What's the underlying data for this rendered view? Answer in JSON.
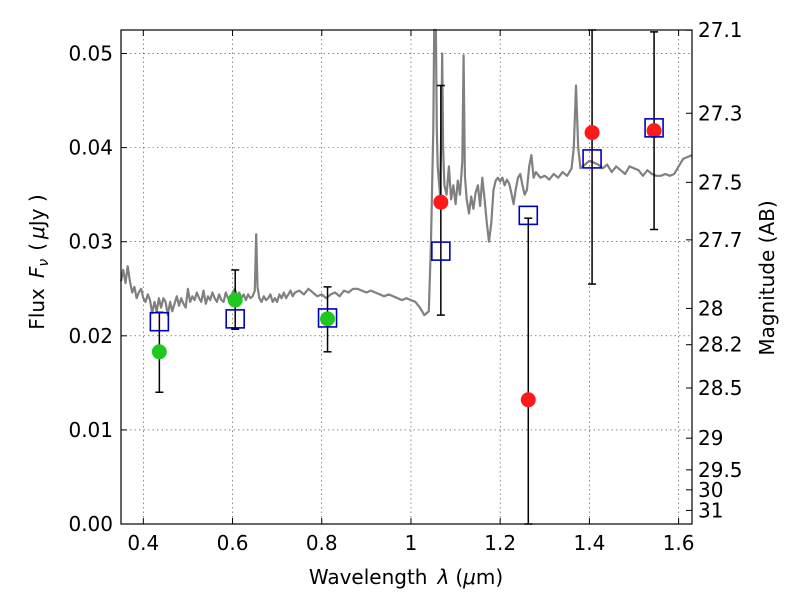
{
  "chart_data": {
    "type": "scatter",
    "title": "",
    "xlabel": "Wavelength",
    "xlabel_symbol": "λ",
    "xlabel_unit_open": "(",
    "xlabel_unit_mu": "μ",
    "xlabel_unit_rest": "m)",
    "ylabel": "Flux",
    "ylabel_symbol": "F",
    "ylabel_subscript": "ν",
    "ylabel_unit_open": "(",
    "ylabel_unit_mu": "μ",
    "ylabel_unit_rest": "Jy )",
    "y2label": "Magnitude (AB)",
    "xlim": [
      0.35,
      1.63
    ],
    "ylim": [
      0.0,
      0.0525
    ],
    "grid": true,
    "x_ticks": [
      {
        "value": 0.4,
        "label": "0.4"
      },
      {
        "value": 0.6,
        "label": "0.6"
      },
      {
        "value": 0.8,
        "label": "0.8"
      },
      {
        "value": 1.0,
        "label": "1"
      },
      {
        "value": 1.2,
        "label": "1.2"
      },
      {
        "value": 1.4,
        "label": "1.4"
      },
      {
        "value": 1.6,
        "label": "1.6"
      }
    ],
    "y_ticks": [
      {
        "value": 0.0,
        "label": "0.00"
      },
      {
        "value": 0.01,
        "label": "0.01"
      },
      {
        "value": 0.02,
        "label": "0.02"
      },
      {
        "value": 0.03,
        "label": "0.03"
      },
      {
        "value": 0.04,
        "label": "0.04"
      },
      {
        "value": 0.05,
        "label": "0.05"
      }
    ],
    "y2_ticks": [
      {
        "value": 27.1,
        "label": "27.1"
      },
      {
        "value": 27.3,
        "label": "27.3"
      },
      {
        "value": 27.5,
        "label": "27.5"
      },
      {
        "value": 27.7,
        "label": "27.7"
      },
      {
        "value": 28.0,
        "label": "28"
      },
      {
        "value": 28.2,
        "label": "28.2"
      },
      {
        "value": 28.5,
        "label": "28.5"
      },
      {
        "value": 29.0,
        "label": "29"
      },
      {
        "value": 29.5,
        "label": "29.5"
      },
      {
        "value": 30.0,
        "label": "30"
      },
      {
        "value": 31.0,
        "label": "31"
      }
    ],
    "colors": {
      "spectrum": "#808080",
      "observed_detected": "#1ec81e",
      "observed_other": "#ff1a1a",
      "model": "#0000bb",
      "errorbar": "#000000"
    },
    "series": [
      {
        "kind": "line",
        "points": [
          [
            0.35,
            0.0258
          ],
          [
            0.355,
            0.027
          ],
          [
            0.36,
            0.0256
          ],
          [
            0.365,
            0.0274
          ],
          [
            0.37,
            0.0258
          ],
          [
            0.375,
            0.0246
          ],
          [
            0.38,
            0.0252
          ],
          [
            0.385,
            0.024
          ],
          [
            0.39,
            0.0246
          ],
          [
            0.395,
            0.025
          ],
          [
            0.4,
            0.024
          ],
          [
            0.405,
            0.0236
          ],
          [
            0.41,
            0.0244
          ],
          [
            0.415,
            0.0238
          ],
          [
            0.42,
            0.0224
          ],
          [
            0.425,
            0.0236
          ],
          [
            0.43,
            0.0226
          ],
          [
            0.435,
            0.024
          ],
          [
            0.44,
            0.023
          ],
          [
            0.445,
            0.024
          ],
          [
            0.45,
            0.0236
          ],
          [
            0.455,
            0.0222
          ],
          [
            0.46,
            0.0236
          ],
          [
            0.465,
            0.0226
          ],
          [
            0.47,
            0.0234
          ],
          [
            0.475,
            0.0242
          ],
          [
            0.48,
            0.0232
          ],
          [
            0.485,
            0.024
          ],
          [
            0.49,
            0.0234
          ],
          [
            0.495,
            0.023
          ],
          [
            0.5,
            0.025
          ],
          [
            0.505,
            0.0236
          ],
          [
            0.51,
            0.0242
          ],
          [
            0.515,
            0.0238
          ],
          [
            0.52,
            0.0246
          ],
          [
            0.525,
            0.024
          ],
          [
            0.53,
            0.0236
          ],
          [
            0.535,
            0.0248
          ],
          [
            0.54,
            0.0234
          ],
          [
            0.545,
            0.0242
          ],
          [
            0.55,
            0.0238
          ],
          [
            0.555,
            0.0246
          ],
          [
            0.56,
            0.024
          ],
          [
            0.565,
            0.0236
          ],
          [
            0.57,
            0.0244
          ],
          [
            0.575,
            0.0238
          ],
          [
            0.58,
            0.0236
          ],
          [
            0.585,
            0.0246
          ],
          [
            0.59,
            0.024
          ],
          [
            0.595,
            0.0236
          ],
          [
            0.6,
            0.0246
          ],
          [
            0.605,
            0.025
          ],
          [
            0.61,
            0.0242
          ],
          [
            0.615,
            0.0246
          ],
          [
            0.62,
            0.024
          ],
          [
            0.625,
            0.0244
          ],
          [
            0.63,
            0.0238
          ],
          [
            0.635,
            0.0244
          ],
          [
            0.64,
            0.024
          ],
          [
            0.645,
            0.0242
          ],
          [
            0.65,
            0.0248
          ],
          [
            0.653,
            0.0308
          ],
          [
            0.656,
            0.0252
          ],
          [
            0.66,
            0.024
          ],
          [
            0.665,
            0.0236
          ],
          [
            0.67,
            0.0242
          ],
          [
            0.675,
            0.0238
          ],
          [
            0.68,
            0.024
          ],
          [
            0.685,
            0.0244
          ],
          [
            0.69,
            0.0236
          ],
          [
            0.695,
            0.024
          ],
          [
            0.7,
            0.0236
          ],
          [
            0.705,
            0.0244
          ],
          [
            0.71,
            0.024
          ],
          [
            0.715,
            0.0246
          ],
          [
            0.72,
            0.024
          ],
          [
            0.725,
            0.0244
          ],
          [
            0.73,
            0.0248
          ],
          [
            0.735,
            0.0242
          ],
          [
            0.74,
            0.0246
          ],
          [
            0.75,
            0.0248
          ],
          [
            0.76,
            0.0244
          ],
          [
            0.77,
            0.025
          ],
          [
            0.78,
            0.0246
          ],
          [
            0.79,
            0.0242
          ],
          [
            0.8,
            0.0244
          ],
          [
            0.81,
            0.024
          ],
          [
            0.82,
            0.0244
          ],
          [
            0.83,
            0.0246
          ],
          [
            0.84,
            0.0242
          ],
          [
            0.85,
            0.0248
          ],
          [
            0.86,
            0.0246
          ],
          [
            0.87,
            0.025
          ],
          [
            0.88,
            0.025
          ],
          [
            0.89,
            0.0248
          ],
          [
            0.9,
            0.0246
          ],
          [
            0.91,
            0.0248
          ],
          [
            0.92,
            0.0246
          ],
          [
            0.93,
            0.0244
          ],
          [
            0.94,
            0.0242
          ],
          [
            0.95,
            0.0244
          ],
          [
            0.96,
            0.0242
          ],
          [
            0.97,
            0.024
          ],
          [
            0.98,
            0.0238
          ],
          [
            0.99,
            0.024
          ],
          [
            1.0,
            0.0238
          ],
          [
            1.01,
            0.0236
          ],
          [
            1.02,
            0.023
          ],
          [
            1.03,
            0.0222
          ],
          [
            1.04,
            0.0226
          ],
          [
            1.045,
            0.03
          ],
          [
            1.05,
            0.042
          ],
          [
            1.052,
            0.0525
          ],
          [
            1.056,
            0.0525
          ],
          [
            1.058,
            0.042
          ],
          [
            1.06,
            0.038
          ],
          [
            1.065,
            0.035
          ],
          [
            1.068,
            0.042
          ],
          [
            1.07,
            0.05
          ],
          [
            1.072,
            0.04
          ],
          [
            1.075,
            0.036
          ],
          [
            1.08,
            0.035
          ],
          [
            1.085,
            0.038
          ],
          [
            1.09,
            0.0345
          ],
          [
            1.095,
            0.036
          ],
          [
            1.1,
            0.034
          ],
          [
            1.105,
            0.0365
          ],
          [
            1.11,
            0.035
          ],
          [
            1.115,
            0.0385
          ],
          [
            1.118,
            0.0498
          ],
          [
            1.121,
            0.037
          ],
          [
            1.125,
            0.0345
          ],
          [
            1.13,
            0.033
          ],
          [
            1.135,
            0.0348
          ],
          [
            1.14,
            0.0335
          ],
          [
            1.145,
            0.0352
          ],
          [
            1.15,
            0.036
          ],
          [
            1.155,
            0.0338
          ],
          [
            1.16,
            0.0368
          ],
          [
            1.165,
            0.0345
          ],
          [
            1.17,
            0.032
          ],
          [
            1.175,
            0.03
          ],
          [
            1.18,
            0.032
          ],
          [
            1.185,
            0.0355
          ],
          [
            1.19,
            0.0365
          ],
          [
            1.195,
            0.0368
          ],
          [
            1.2,
            0.0364
          ],
          [
            1.205,
            0.0368
          ],
          [
            1.21,
            0.036
          ],
          [
            1.215,
            0.0366
          ],
          [
            1.22,
            0.0362
          ],
          [
            1.225,
            0.0352
          ],
          [
            1.23,
            0.034
          ],
          [
            1.235,
            0.0356
          ],
          [
            1.24,
            0.0368
          ],
          [
            1.245,
            0.0372
          ],
          [
            1.25,
            0.036
          ],
          [
            1.255,
            0.035
          ],
          [
            1.26,
            0.0355
          ],
          [
            1.265,
            0.038
          ],
          [
            1.27,
            0.0392
          ],
          [
            1.275,
            0.0368
          ],
          [
            1.28,
            0.0374
          ],
          [
            1.29,
            0.0368
          ],
          [
            1.3,
            0.037
          ],
          [
            1.31,
            0.0366
          ],
          [
            1.32,
            0.0372
          ],
          [
            1.33,
            0.0368
          ],
          [
            1.34,
            0.0374
          ],
          [
            1.35,
            0.037
          ],
          [
            1.36,
            0.0378
          ],
          [
            1.365,
            0.04
          ],
          [
            1.37,
            0.0466
          ],
          [
            1.375,
            0.04
          ],
          [
            1.38,
            0.0378
          ],
          [
            1.39,
            0.0382
          ],
          [
            1.4,
            0.0386
          ],
          [
            1.41,
            0.0384
          ],
          [
            1.42,
            0.0382
          ],
          [
            1.43,
            0.0378
          ],
          [
            1.44,
            0.0382
          ],
          [
            1.45,
            0.0374
          ],
          [
            1.46,
            0.038
          ],
          [
            1.47,
            0.0376
          ],
          [
            1.48,
            0.0372
          ],
          [
            1.49,
            0.038
          ],
          [
            1.5,
            0.0378
          ],
          [
            1.51,
            0.0376
          ],
          [
            1.52,
            0.037
          ],
          [
            1.53,
            0.0376
          ],
          [
            1.54,
            0.0372
          ],
          [
            1.55,
            0.037
          ],
          [
            1.56,
            0.037
          ],
          [
            1.57,
            0.0372
          ],
          [
            1.58,
            0.037
          ],
          [
            1.59,
            0.0372
          ],
          [
            1.6,
            0.038
          ],
          [
            1.61,
            0.0388
          ],
          [
            1.62,
            0.039
          ],
          [
            1.63,
            0.0392
          ]
        ]
      },
      {
        "kind": "errorbars",
        "points": [
          {
            "x": 0.436,
            "low": 0.014,
            "high": 0.0225
          },
          {
            "x": 0.606,
            "low": 0.0207,
            "high": 0.027
          },
          {
            "x": 0.813,
            "low": 0.0183,
            "high": 0.0252
          },
          {
            "x": 1.067,
            "low": 0.0222,
            "high": 0.0466
          },
          {
            "x": 1.263,
            "low": 0.0,
            "high": 0.0325
          },
          {
            "x": 1.406,
            "low": 0.0255,
            "high": 0.0525
          },
          {
            "x": 1.545,
            "low": 0.0313,
            "high": 0.0523
          }
        ]
      },
      {
        "kind": "points-green",
        "points": [
          [
            0.436,
            0.0183
          ],
          [
            0.606,
            0.0238
          ],
          [
            0.813,
            0.0218
          ]
        ]
      },
      {
        "kind": "points-red",
        "points": [
          [
            1.067,
            0.0342
          ],
          [
            1.263,
            0.0132
          ],
          [
            1.406,
            0.0416
          ],
          [
            1.545,
            0.0418
          ]
        ]
      },
      {
        "kind": "squares",
        "points": [
          [
            0.436,
            0.0215
          ],
          [
            0.606,
            0.0218
          ],
          [
            0.813,
            0.0219
          ],
          [
            1.067,
            0.029
          ],
          [
            1.263,
            0.0328
          ],
          [
            1.406,
            0.0388
          ],
          [
            1.545,
            0.0421
          ]
        ]
      }
    ]
  }
}
